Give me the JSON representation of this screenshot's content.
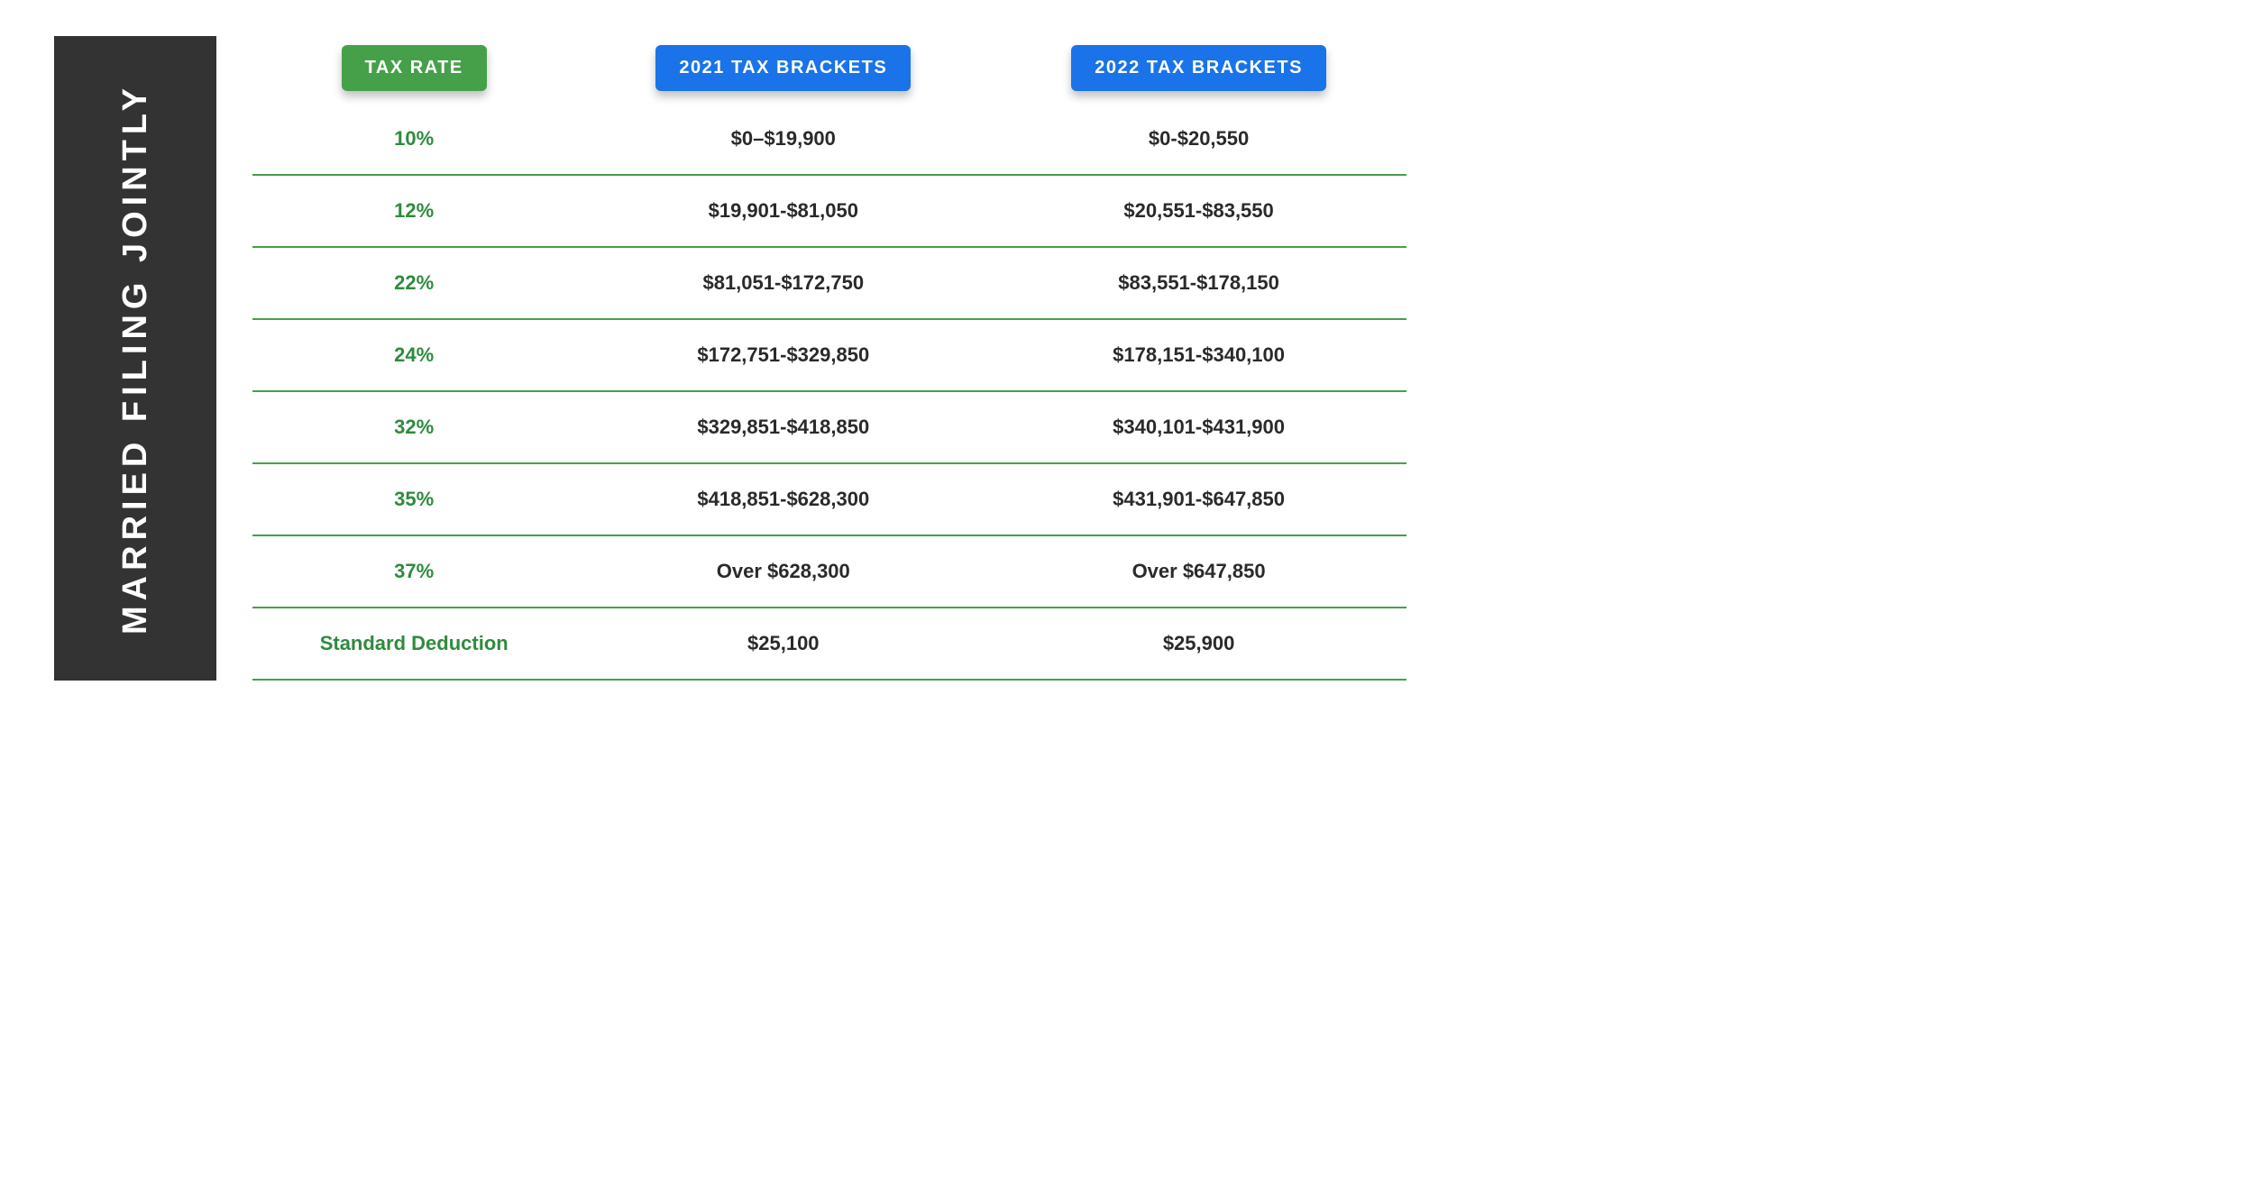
{
  "sidebar": {
    "title": "MARRIED FILING JOINTLY"
  },
  "headers": {
    "rate": "TAX RATE",
    "y2021": "2021 TAX BRACKETS",
    "y2022": "2022 TAX BRACKETS"
  },
  "rows": [
    {
      "rate": "10%",
      "y2021": "$0–$19,900",
      "y2022": "$0-$20,550"
    },
    {
      "rate": "12%",
      "y2021": "$19,901-$81,050",
      "y2022": "$20,551-$83,550"
    },
    {
      "rate": "22%",
      "y2021": "$81,051-$172,750",
      "y2022": "$83,551-$178,150"
    },
    {
      "rate": "24%",
      "y2021": "$172,751-$329,850",
      "y2022": "$178,151-$340,100"
    },
    {
      "rate": "32%",
      "y2021": "$329,851-$418,850",
      "y2022": "$340,101-$431,900"
    },
    {
      "rate": "35%",
      "y2021": "$418,851-$628,300",
      "y2022": "$431,901-$647,850"
    },
    {
      "rate": "37%",
      "y2021": "Over $628,300",
      "y2022": "Over $647,850"
    }
  ],
  "deduction": {
    "label": "Standard Deduction",
    "y2021": "$25,100",
    "y2022": "$25,900"
  },
  "colors": {
    "green": "#46a049",
    "blue": "#1a73e8",
    "sidebar_bg": "#333333",
    "text_dark": "#2a2a2a",
    "rate_green": "#2e8b3e"
  }
}
